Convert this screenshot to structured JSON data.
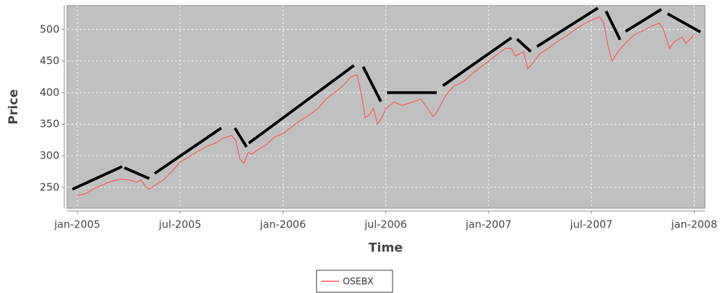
{
  "chart_data": {
    "type": "line",
    "x_label": "Time",
    "y_label": "Price",
    "xlim": [
      2004.95,
      2008.052
    ],
    "ylim": [
      217,
      538
    ],
    "xticks": [
      {
        "value": 2005.0,
        "label": "jan-2005"
      },
      {
        "value": 2005.5,
        "label": "jul-2005"
      },
      {
        "value": 2006.0,
        "label": "jan-2006"
      },
      {
        "value": 2006.5,
        "label": "jul-2006"
      },
      {
        "value": 2007.0,
        "label": "jan-2007"
      },
      {
        "value": 2007.5,
        "label": "jul-2007"
      },
      {
        "value": 2008.0,
        "label": "jan-2008"
      }
    ],
    "yticks": [
      250,
      300,
      350,
      400,
      450,
      500
    ],
    "grid": true,
    "legend": "bottom",
    "x": [
      2005.0,
      2005.04,
      2005.08,
      2005.13,
      2005.17,
      2005.21,
      2005.25,
      2005.29,
      2005.31,
      2005.33,
      2005.35,
      2005.38,
      2005.42,
      2005.46,
      2005.5,
      2005.54,
      2005.58,
      2005.63,
      2005.67,
      2005.71,
      2005.75,
      2005.77,
      2005.79,
      2005.81,
      2005.83,
      2005.85,
      2005.88,
      2005.92,
      2005.96,
      2006.0,
      2006.04,
      2006.08,
      2006.13,
      2006.17,
      2006.21,
      2006.25,
      2006.29,
      2006.33,
      2006.36,
      2006.38,
      2006.4,
      2006.42,
      2006.44,
      2006.46,
      2006.48,
      2006.5,
      2006.54,
      2006.58,
      2006.63,
      2006.67,
      2006.71,
      2006.73,
      2006.75,
      2006.79,
      2006.83,
      2006.88,
      2006.92,
      2006.96,
      2007.0,
      2007.04,
      2007.08,
      2007.11,
      2007.13,
      2007.17,
      2007.19,
      2007.21,
      2007.25,
      2007.29,
      2007.33,
      2007.38,
      2007.42,
      2007.46,
      2007.5,
      2007.54,
      2007.56,
      2007.58,
      2007.6,
      2007.63,
      2007.67,
      2007.71,
      2007.75,
      2007.79,
      2007.83,
      2007.85,
      2007.88,
      2007.9,
      2007.94,
      2007.96,
      2007.98,
      2008.0
    ],
    "series": [
      {
        "name": "OSEBX",
        "color": "#ff5555",
        "values": [
          237,
          240,
          248,
          255,
          260,
          263,
          262,
          258,
          262,
          252,
          247,
          254,
          262,
          275,
          290,
          298,
          306,
          315,
          320,
          328,
          332,
          325,
          295,
          288,
          305,
          303,
          310,
          318,
          330,
          335,
          345,
          355,
          365,
          375,
          390,
          400,
          410,
          425,
          428,
          400,
          360,
          365,
          375,
          350,
          360,
          375,
          385,
          380,
          385,
          390,
          372,
          362,
          370,
          395,
          410,
          418,
          430,
          440,
          450,
          460,
          470,
          470,
          458,
          465,
          438,
          445,
          462,
          470,
          480,
          490,
          500,
          508,
          515,
          520,
          510,
          475,
          450,
          465,
          480,
          492,
          498,
          505,
          510,
          500,
          470,
          480,
          488,
          478,
          485,
          492
        ]
      }
    ],
    "trend_color": "#000000",
    "trend_lines": [
      {
        "x": [
          2004.976,
          2005.218
        ],
        "y": [
          247,
          283
        ]
      },
      {
        "x": [
          2005.229,
          2005.35
        ],
        "y": [
          281,
          264
        ]
      },
      {
        "x": [
          2005.376,
          2005.7
        ],
        "y": [
          272,
          344
        ]
      },
      {
        "x": [
          2005.766,
          2005.823
        ],
        "y": [
          344,
          314
        ]
      },
      {
        "x": [
          2005.834,
          2006.345
        ],
        "y": [
          320,
          443
        ]
      },
      {
        "x": [
          2006.39,
          2006.476
        ],
        "y": [
          441,
          386
        ]
      },
      {
        "x": [
          2006.506,
          2006.748
        ],
        "y": [
          400,
          400
        ]
      },
      {
        "x": [
          2006.778,
          2007.111
        ],
        "y": [
          411,
          487
        ]
      },
      {
        "x": [
          2007.138,
          2007.205
        ],
        "y": [
          485,
          465
        ]
      },
      {
        "x": [
          2007.235,
          2007.531
        ],
        "y": [
          473,
          534
        ]
      },
      {
        "x": [
          2007.571,
          2007.639
        ],
        "y": [
          529,
          484
        ]
      },
      {
        "x": [
          2007.666,
          2007.84
        ],
        "y": [
          497,
          532
        ]
      },
      {
        "x": [
          2007.87,
          2008.03
        ],
        "y": [
          525,
          496
        ]
      }
    ]
  }
}
